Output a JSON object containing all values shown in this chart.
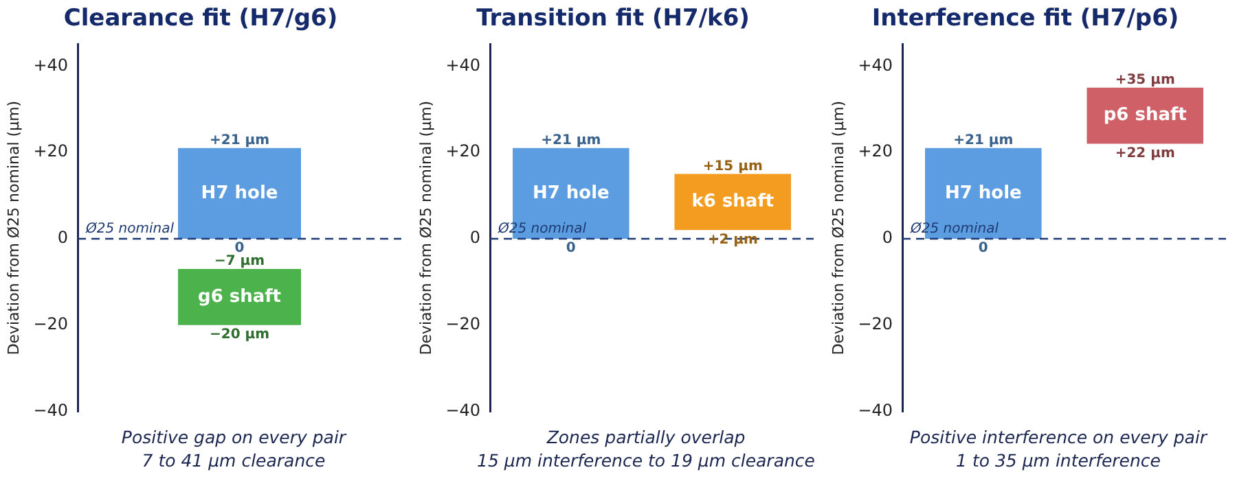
{
  "chart_data": [
    {
      "type": "bar",
      "title": "Clearance fit (H7/g6)",
      "ylabel": "Deviation from Ø25 nominal (µm)",
      "categories": [
        null
      ],
      "series": [
        {
          "name": "H7 hole",
          "color": "#5b9de0",
          "values": [
            21
          ],
          "base": [
            0
          ]
        },
        {
          "name": "g6 shaft",
          "color": "#4cb24c",
          "values": [
            13
          ],
          "base": [
            -20
          ]
        }
      ],
      "ylim": [
        -40,
        45
      ],
      "yticks": [
        {
          "value": -40,
          "label": "−40"
        },
        {
          "value": -20,
          "label": "−20"
        },
        {
          "value": 0,
          "label": "0"
        },
        {
          "value": 20,
          "label": "+20"
        },
        {
          "value": 40,
          "label": "+40"
        }
      ],
      "grid": false,
      "legend": false,
      "tick_labels": "y",
      "ref_lines": [
        {
          "axis": "y",
          "value": 0,
          "label": "Ø25 nominal",
          "color": "#1f3a73",
          "line_style": "dashed"
        }
      ],
      "annotations": [
        {
          "text": "+21 µm",
          "y": 21
        },
        {
          "text": "0",
          "y": 0
        },
        {
          "text": "−7 µm",
          "y": -7
        },
        {
          "text": "−20 µm",
          "y": -20
        },
        "Positive gap on every pair",
        "7 to 41 µm clearance"
      ]
    },
    {
      "type": "bar",
      "title": "Transition fit (H7/k6)",
      "ylabel": "Deviation from Ø25 nominal (µm)",
      "categories": [
        null,
        null
      ],
      "series": [
        {
          "name": "H7 hole",
          "color": "#5b9de0",
          "values": [
            21,
            null
          ],
          "base": [
            0,
            null
          ]
        },
        {
          "name": "k6 shaft",
          "color": "#f39c1f",
          "values": [
            null,
            13
          ],
          "base": [
            null,
            2
          ]
        }
      ],
      "ylim": [
        -40,
        45
      ],
      "yticks": [
        {
          "value": -40,
          "label": "−40"
        },
        {
          "value": -20,
          "label": "−20"
        },
        {
          "value": 0,
          "label": "0"
        },
        {
          "value": 20,
          "label": "+20"
        },
        {
          "value": 40,
          "label": "+40"
        }
      ],
      "grid": false,
      "legend": false,
      "tick_labels": "y",
      "ref_lines": [
        {
          "axis": "y",
          "value": 0,
          "label": "Ø25 nominal",
          "color": "#1f3a73",
          "line_style": "dashed"
        }
      ],
      "annotations": [
        {
          "text": "+21 µm",
          "y": 21
        },
        {
          "text": "0",
          "y": 0
        },
        {
          "text": "+15 µm",
          "y": 15
        },
        {
          "text": "+2 µm",
          "y": 2
        },
        "Zones partially overlap",
        "15 µm interference to 19 µm clearance"
      ]
    },
    {
      "type": "bar",
      "title": "Interference fit (H7/p6)",
      "ylabel": "Deviation from Ø25 nominal (µm)",
      "categories": [
        null,
        null
      ],
      "series": [
        {
          "name": "H7 hole",
          "color": "#5b9de0",
          "values": [
            21,
            null
          ],
          "base": [
            0,
            null
          ]
        },
        {
          "name": "p6 shaft",
          "color": "#d06068",
          "values": [
            null,
            13
          ],
          "base": [
            null,
            22
          ]
        }
      ],
      "ylim": [
        -40,
        45
      ],
      "yticks": [
        {
          "value": -40,
          "label": "−40"
        },
        {
          "value": -20,
          "label": "−20"
        },
        {
          "value": 0,
          "label": "0"
        },
        {
          "value": 20,
          "label": "+20"
        },
        {
          "value": 40,
          "label": "+40"
        }
      ],
      "grid": false,
      "legend": false,
      "tick_labels": "y",
      "ref_lines": [
        {
          "axis": "y",
          "value": 0,
          "label": "Ø25 nominal",
          "color": "#1f3a73",
          "line_style": "dashed"
        }
      ],
      "annotations": [
        {
          "text": "+21 µm",
          "y": 21
        },
        {
          "text": "0",
          "y": 0
        },
        {
          "text": "+35 µm",
          "y": 35
        },
        {
          "text": "+22 µm",
          "y": 22
        },
        "Positive interference on every pair",
        "1 to 35 µm interference"
      ]
    }
  ]
}
